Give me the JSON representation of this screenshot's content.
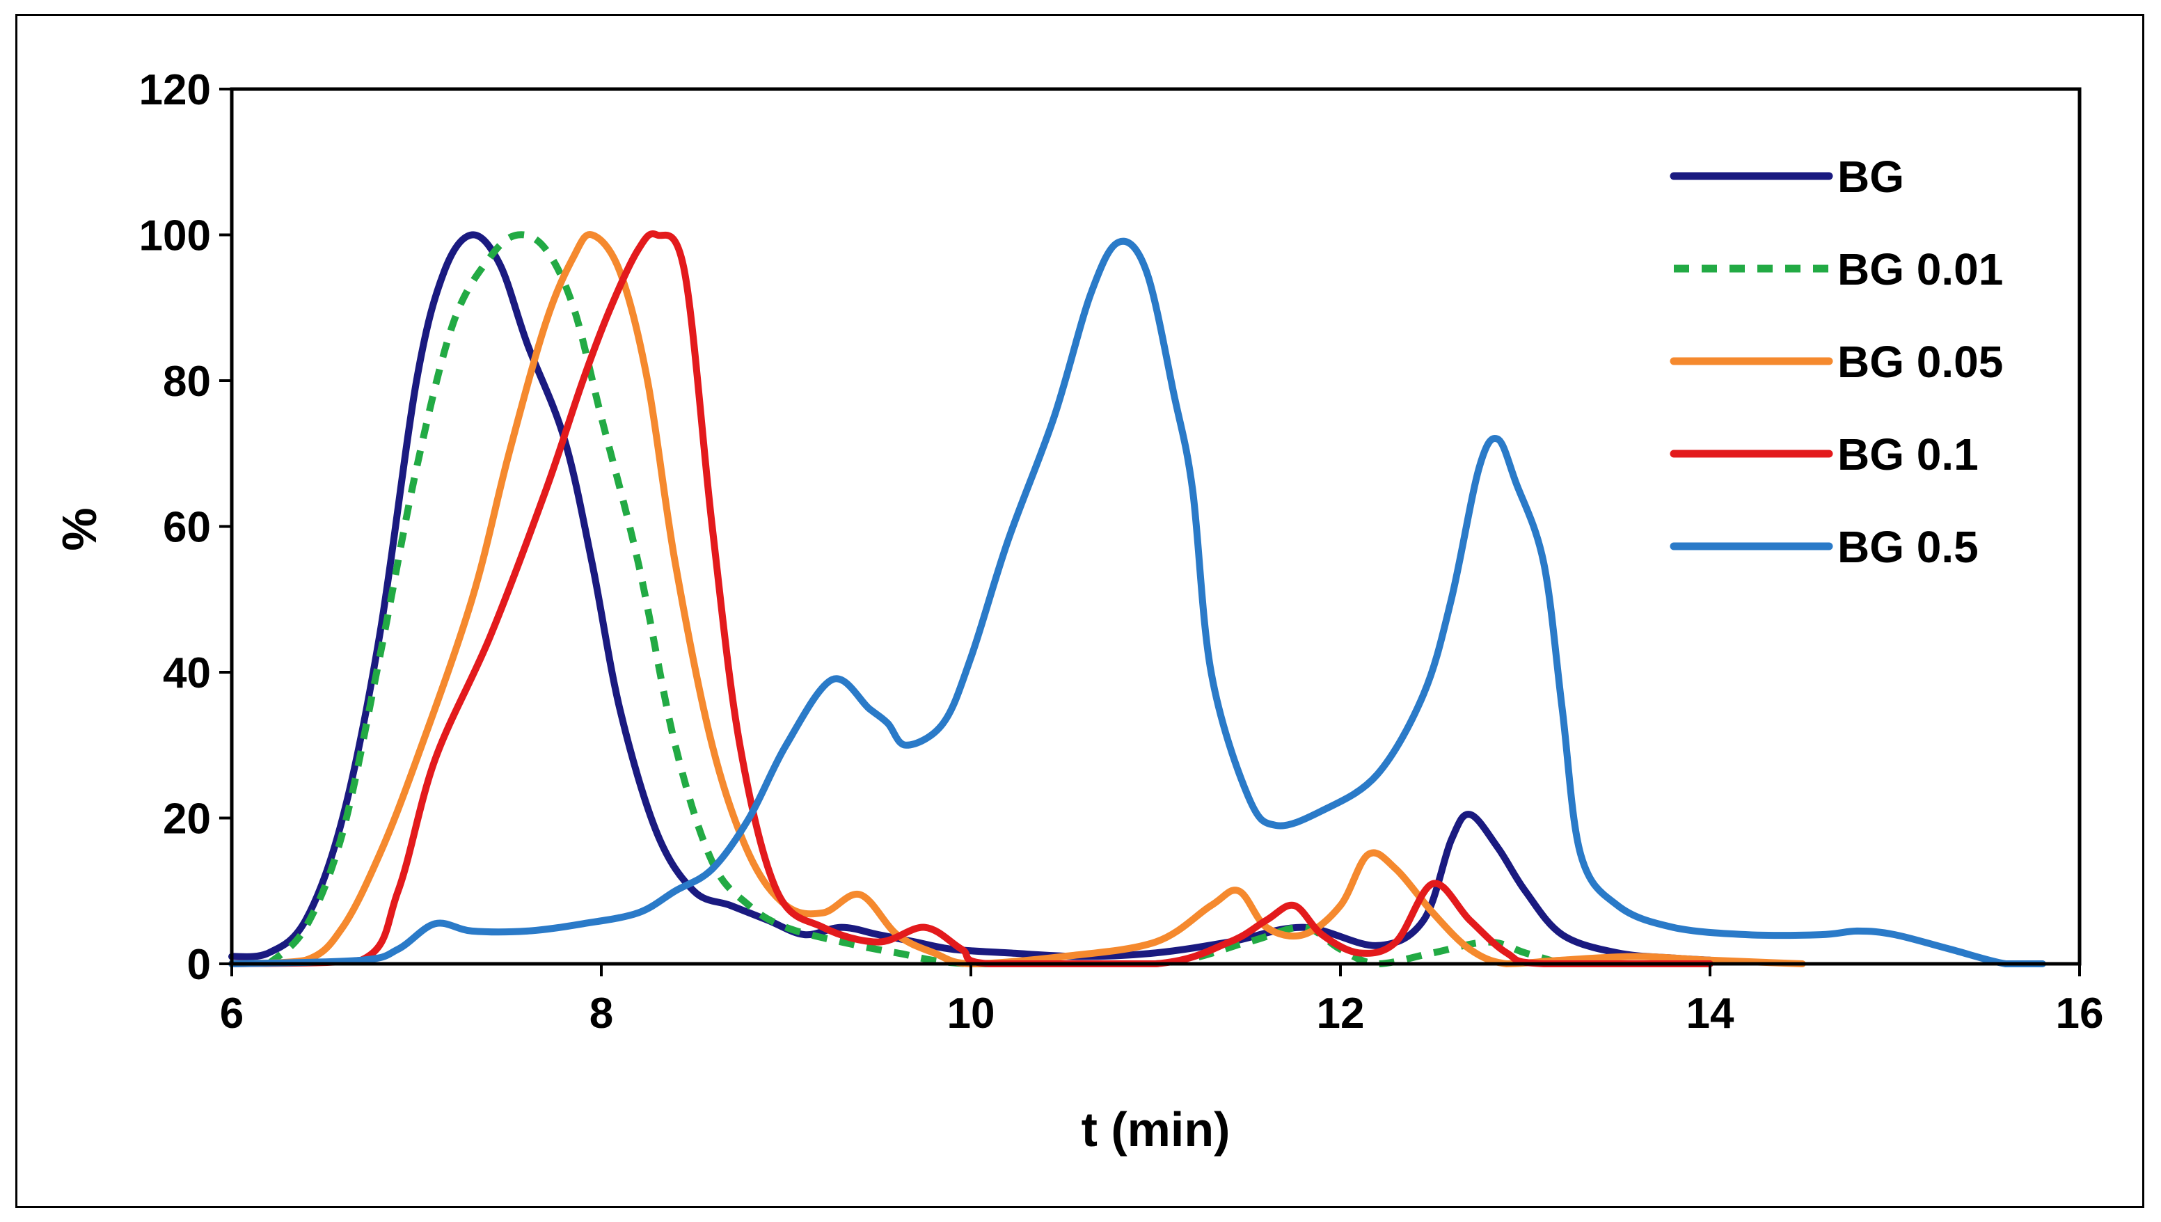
{
  "chart_data": {
    "type": "line",
    "title": "",
    "xlabel": "t (min)",
    "ylabel": "%",
    "xlim": [
      6,
      16
    ],
    "ylim": [
      0,
      120
    ],
    "xticks": [
      6,
      8,
      10,
      12,
      14,
      16
    ],
    "yticks": [
      0,
      20,
      40,
      60,
      80,
      100,
      120
    ],
    "grid": false,
    "legend_position": "top-right",
    "series": [
      {
        "name": "BG",
        "color": "#1a1a80",
        "dash": "solid",
        "points": [
          [
            6,
            1
          ],
          [
            6.2,
            1.5
          ],
          [
            6.4,
            6
          ],
          [
            6.6,
            20
          ],
          [
            6.8,
            45
          ],
          [
            7.0,
            80
          ],
          [
            7.15,
            95
          ],
          [
            7.3,
            100
          ],
          [
            7.45,
            96
          ],
          [
            7.6,
            85
          ],
          [
            7.8,
            72
          ],
          [
            7.95,
            55
          ],
          [
            8.1,
            35
          ],
          [
            8.3,
            18
          ],
          [
            8.5,
            10
          ],
          [
            8.7,
            8
          ],
          [
            8.9,
            6
          ],
          [
            9.1,
            4
          ],
          [
            9.3,
            5
          ],
          [
            9.5,
            4
          ],
          [
            9.7,
            3
          ],
          [
            9.9,
            2
          ],
          [
            10.2,
            1.5
          ],
          [
            10.6,
            1
          ],
          [
            11,
            1.5
          ],
          [
            11.4,
            3
          ],
          [
            11.8,
            5
          ],
          [
            12.2,
            2.5
          ],
          [
            12.45,
            6
          ],
          [
            12.6,
            17
          ],
          [
            12.7,
            20.5
          ],
          [
            12.85,
            16
          ],
          [
            13.0,
            10
          ],
          [
            13.2,
            4
          ],
          [
            13.5,
            1.5
          ],
          [
            13.8,
            0.8
          ],
          [
            14,
            0.5
          ]
        ]
      },
      {
        "name": "BG 0.01",
        "color": "#22aa44",
        "dash": "dashed",
        "points": [
          [
            6.2,
            0
          ],
          [
            6.4,
            5
          ],
          [
            6.6,
            18
          ],
          [
            6.8,
            42
          ],
          [
            7.0,
            68
          ],
          [
            7.2,
            88
          ],
          [
            7.4,
            97
          ],
          [
            7.55,
            100
          ],
          [
            7.7,
            98
          ],
          [
            7.85,
            90
          ],
          [
            8.0,
            75
          ],
          [
            8.2,
            55
          ],
          [
            8.4,
            30
          ],
          [
            8.6,
            14
          ],
          [
            8.8,
            8
          ],
          [
            9.0,
            5
          ],
          [
            9.3,
            3
          ],
          [
            9.6,
            1.5
          ],
          [
            10,
            0
          ],
          [
            11,
            0
          ],
          [
            11.5,
            3
          ],
          [
            11.8,
            5
          ],
          [
            12.0,
            2
          ],
          [
            12.2,
            0
          ],
          [
            12.5,
            1.5
          ],
          [
            12.8,
            3
          ],
          [
            13.0,
            1.5
          ],
          [
            13.2,
            0
          ]
        ]
      },
      {
        "name": "BG 0.05",
        "color": "#f5892e",
        "dash": "solid",
        "points": [
          [
            6,
            0
          ],
          [
            6.4,
            0.5
          ],
          [
            6.6,
            5
          ],
          [
            6.8,
            15
          ],
          [
            7.0,
            28
          ],
          [
            7.3,
            50
          ],
          [
            7.5,
            70
          ],
          [
            7.7,
            88
          ],
          [
            7.85,
            97
          ],
          [
            7.95,
            100
          ],
          [
            8.1,
            95
          ],
          [
            8.25,
            80
          ],
          [
            8.4,
            55
          ],
          [
            8.6,
            30
          ],
          [
            8.8,
            15
          ],
          [
            9.0,
            8
          ],
          [
            9.2,
            7
          ],
          [
            9.4,
            9.5
          ],
          [
            9.6,
            4
          ],
          [
            9.8,
            1.5
          ],
          [
            10,
            0
          ],
          [
            10.5,
            1
          ],
          [
            11,
            3
          ],
          [
            11.3,
            8
          ],
          [
            11.45,
            10
          ],
          [
            11.6,
            5
          ],
          [
            11.8,
            4
          ],
          [
            12.0,
            8
          ],
          [
            12.15,
            15
          ],
          [
            12.3,
            13
          ],
          [
            12.5,
            7
          ],
          [
            12.7,
            2
          ],
          [
            12.9,
            0
          ],
          [
            13.2,
            0.5
          ],
          [
            13.6,
            1
          ],
          [
            14.0,
            0.5
          ],
          [
            14.5,
            0
          ]
        ]
      },
      {
        "name": "BG 0.1",
        "color": "#e31a1c",
        "dash": "solid",
        "points": [
          [
            6,
            0
          ],
          [
            6.7,
            0.5
          ],
          [
            6.9,
            10
          ],
          [
            7.1,
            28
          ],
          [
            7.4,
            45
          ],
          [
            7.7,
            65
          ],
          [
            7.9,
            80
          ],
          [
            8.05,
            90
          ],
          [
            8.2,
            98
          ],
          [
            8.3,
            100
          ],
          [
            8.45,
            95
          ],
          [
            8.6,
            60
          ],
          [
            8.75,
            30
          ],
          [
            8.95,
            10
          ],
          [
            9.2,
            5
          ],
          [
            9.5,
            3
          ],
          [
            9.75,
            5
          ],
          [
            9.95,
            2
          ],
          [
            10.1,
            0
          ],
          [
            11,
            0
          ],
          [
            11.4,
            3
          ],
          [
            11.6,
            6
          ],
          [
            11.75,
            8
          ],
          [
            11.9,
            4
          ],
          [
            12.1,
            1.5
          ],
          [
            12.3,
            3
          ],
          [
            12.5,
            11
          ],
          [
            12.7,
            6
          ],
          [
            12.9,
            1.5
          ],
          [
            13.1,
            0
          ],
          [
            14,
            0
          ]
        ]
      },
      {
        "name": "BG 0.5",
        "color": "#2a7ac8",
        "dash": "solid",
        "points": [
          [
            6,
            0
          ],
          [
            6.7,
            0.5
          ],
          [
            6.9,
            2
          ],
          [
            7.1,
            5.5
          ],
          [
            7.3,
            4.5
          ],
          [
            7.6,
            4.5
          ],
          [
            7.9,
            5.5
          ],
          [
            8.2,
            7
          ],
          [
            8.4,
            10
          ],
          [
            8.6,
            13
          ],
          [
            8.8,
            20
          ],
          [
            9.0,
            30
          ],
          [
            9.25,
            39
          ],
          [
            9.45,
            35
          ],
          [
            9.55,
            33
          ],
          [
            9.65,
            30
          ],
          [
            9.85,
            33
          ],
          [
            10.0,
            42
          ],
          [
            10.2,
            58
          ],
          [
            10.45,
            75
          ],
          [
            10.65,
            92
          ],
          [
            10.8,
            99
          ],
          [
            10.95,
            95
          ],
          [
            11.1,
            78
          ],
          [
            11.2,
            65
          ],
          [
            11.3,
            40
          ],
          [
            11.5,
            23
          ],
          [
            11.65,
            19
          ],
          [
            11.9,
            21
          ],
          [
            12.2,
            26
          ],
          [
            12.45,
            37
          ],
          [
            12.6,
            50
          ],
          [
            12.75,
            68
          ],
          [
            12.85,
            72
          ],
          [
            12.95,
            66
          ],
          [
            13.1,
            55
          ],
          [
            13.2,
            35
          ],
          [
            13.3,
            15
          ],
          [
            13.5,
            8
          ],
          [
            13.8,
            5
          ],
          [
            14.2,
            4
          ],
          [
            14.6,
            4
          ],
          [
            14.8,
            4.5
          ],
          [
            15.0,
            4
          ],
          [
            15.3,
            2
          ],
          [
            15.6,
            0
          ],
          [
            15.8,
            0
          ]
        ]
      }
    ]
  }
}
